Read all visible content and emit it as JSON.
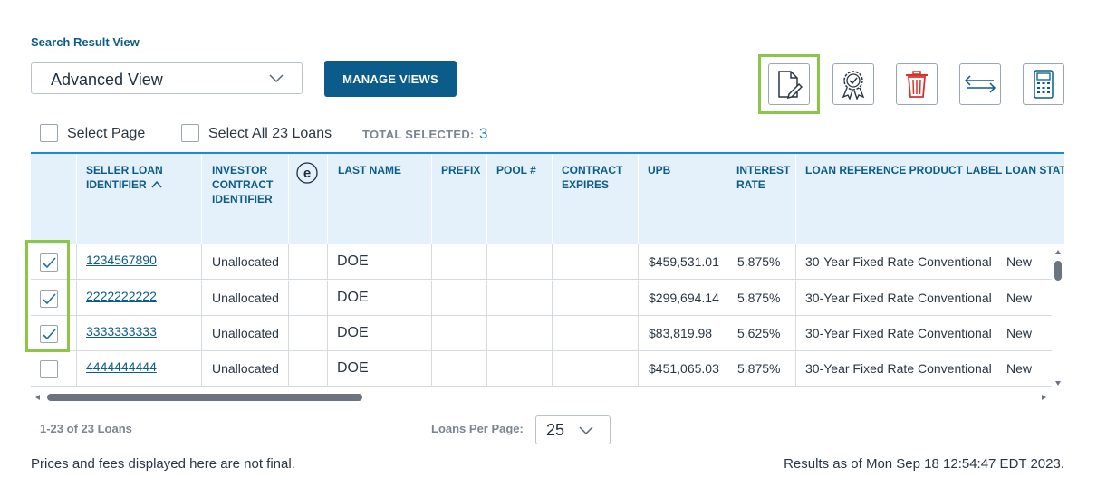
{
  "section_title": "Search Result View",
  "view_select": {
    "value": "Advanced View"
  },
  "manage_views_label": "MANAGE VIEWS",
  "toolbar": {
    "icons": [
      "edit-document-icon",
      "certificate-icon",
      "trash-icon",
      "transfer-arrows-icon",
      "calculator-icon"
    ],
    "colors": {
      "trash": "#d9312b",
      "accent": "#0b5c8a",
      "highlight": "#8dc549"
    }
  },
  "selection": {
    "select_page_label": "Select Page",
    "select_all_label": "Select All 23 Loans",
    "total_selected_label": "TOTAL SELECTED:",
    "total_selected_value": "3"
  },
  "columns": {
    "seller_loan_id": [
      "SELLER LOAN",
      "IDENTIFIER"
    ],
    "investor_contract_id": [
      "INVESTOR",
      "CONTRACT",
      "IDENTIFIER"
    ],
    "e_icon": "e",
    "last_name": "LAST NAME",
    "prefix": "PREFIX",
    "pool": "POOL #",
    "contract_expires": [
      "CONTRACT",
      "EXPIRES"
    ],
    "upb": "UPB",
    "interest_rate": [
      "INTEREST",
      "RATE"
    ],
    "product_label": "LOAN REFERENCE PRODUCT LABEL",
    "loan_status": "LOAN STATU"
  },
  "rows": [
    {
      "checked": true,
      "loan_id": "1234567890",
      "investor": "Unallocated",
      "last_name": "DOE",
      "upb": "$459,531.01",
      "rate": "5.875%",
      "product": "30-Year Fixed Rate Conventional",
      "status": "New"
    },
    {
      "checked": true,
      "loan_id": "2222222222",
      "investor": "Unallocated",
      "last_name": "DOE",
      "upb": "$299,694.14",
      "rate": "5.875%",
      "product": "30-Year Fixed Rate Conventional",
      "status": "New"
    },
    {
      "checked": true,
      "loan_id": "3333333333",
      "investor": "Unallocated",
      "last_name": "DOE",
      "upb": "$83,819.98",
      "rate": "5.625%",
      "product": "30-Year Fixed Rate Conventional",
      "status": "New"
    },
    {
      "checked": false,
      "loan_id": "4444444444",
      "investor": "Unallocated",
      "last_name": "DOE",
      "upb": "$451,065.03",
      "rate": "5.875%",
      "product": "30-Year Fixed Rate Conventional",
      "status": "New"
    }
  ],
  "pagination": {
    "count_text": "1-23 of 23 Loans",
    "per_page_label": "Loans Per Page:",
    "per_page_value": "25"
  },
  "footer": {
    "disclaimer": "Prices and fees displayed here are not final.",
    "results_as_of": "Results as of Mon Sep 18 12:54:47 EDT 2023."
  }
}
